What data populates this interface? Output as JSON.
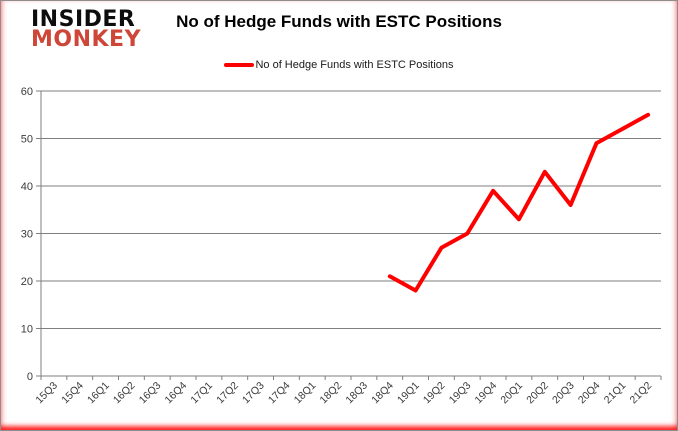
{
  "window": {
    "title": "No of Hedge Funds with ESTC Positions"
  },
  "logo": {
    "line1": "INSIDER",
    "line2": "MONKEY",
    "line1_color": "#0d0d0d",
    "line2_color": "#cd4637"
  },
  "legend": {
    "label": "No of Hedge Funds with ESTC Positions",
    "swatch_color": "#fe0000"
  },
  "chart_data": {
    "type": "line",
    "title": "No of Hedge Funds with ESTC Positions",
    "categories": [
      "15Q3",
      "15Q4",
      "16Q1",
      "16Q2",
      "16Q3",
      "16Q4",
      "17Q1",
      "17Q2",
      "17Q3",
      "17Q4",
      "18Q1",
      "18Q2",
      "18Q3",
      "18Q4",
      "19Q1",
      "19Q2",
      "19Q3",
      "19Q4",
      "20Q1",
      "20Q2",
      "20Q3",
      "20Q4",
      "21Q1",
      "21Q2"
    ],
    "series": [
      {
        "name": "No of Hedge Funds with ESTC Positions",
        "color": "#fe0000",
        "values": [
          null,
          null,
          null,
          null,
          null,
          null,
          null,
          null,
          null,
          null,
          null,
          null,
          null,
          21,
          18,
          27,
          30,
          39,
          33,
          43,
          36,
          49,
          52,
          55
        ]
      }
    ],
    "xlabel": "",
    "ylabel": "",
    "ylim": [
      0,
      60
    ],
    "yticks": [
      0,
      10,
      20,
      30,
      40,
      50,
      60
    ],
    "grid": true,
    "legend_position": "top-center",
    "gridline_color": "#7f7f7f",
    "axis_color": "#7f7f7f",
    "tick_label_color": "#3c3c3c"
  }
}
